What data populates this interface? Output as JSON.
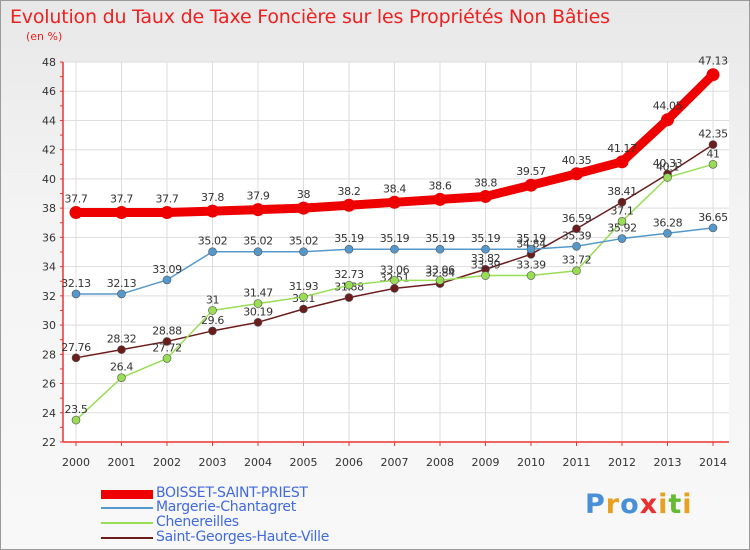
{
  "chart_data": {
    "type": "line",
    "title": "Evolution du Taux de Taxe Foncière sur les Propriétés Non Bâties",
    "ylabel": "(en %)",
    "xlabel": "",
    "ylim": [
      22,
      48
    ],
    "yticks": [
      22,
      24,
      26,
      28,
      30,
      32,
      34,
      36,
      38,
      40,
      42,
      44,
      46,
      48
    ],
    "categories": [
      "2000",
      "2001",
      "2002",
      "2003",
      "2004",
      "2005",
      "2006",
      "2007",
      "2008",
      "2009",
      "2010",
      "2011",
      "2012",
      "2013",
      "2014"
    ],
    "series": [
      {
        "name": "Saint-Georges-Haute-Ville",
        "color": "#6b1c1c",
        "values": [
          27.76,
          28.32,
          28.88,
          29.6,
          30.19,
          31.1,
          31.88,
          32.51,
          32.84,
          33.82,
          34.84,
          36.59,
          38.41,
          40.33,
          42.35
        ],
        "labels": [
          "27.76",
          "28.32",
          "28.88",
          "29.6",
          "30.19",
          "31.1",
          "31.88",
          "32.51",
          "32.84",
          "33.82",
          "34.84",
          "36.59",
          "38.41",
          "40.33",
          "42.35"
        ]
      },
      {
        "name": "Chenereilles",
        "color": "#99dd55",
        "values": [
          23.5,
          26.4,
          27.72,
          31,
          31.47,
          31.93,
          32.73,
          33.06,
          33.06,
          33.39,
          33.39,
          33.72,
          37.1,
          40.1,
          41
        ],
        "labels": [
          "23.5",
          "26.4",
          "27.72",
          "31",
          "31.47",
          "31.93",
          "32.73",
          "33.06",
          "33.06",
          "33.39",
          "33.39",
          "33.72",
          "37.1",
          "40.1",
          "41"
        ]
      },
      {
        "name": "Margerie-Chantagret",
        "color": "#5599cc",
        "values": [
          32.13,
          32.13,
          33.09,
          35.02,
          35.02,
          35.02,
          35.19,
          35.19,
          35.19,
          35.19,
          35.19,
          35.39,
          35.92,
          36.28,
          36.65
        ],
        "labels": [
          "32.13",
          "32.13",
          "33.09",
          "35.02",
          "35.02",
          "35.02",
          "35.19",
          "35.19",
          "35.19",
          "35.19",
          "35.19",
          "35.39",
          "35.92",
          "36.28",
          "36.65"
        ]
      },
      {
        "name": "BOISSET-SAINT-PRIEST",
        "color": "#ee0000",
        "values": [
          37.7,
          37.7,
          37.7,
          37.8,
          37.9,
          38,
          38.2,
          38.4,
          38.6,
          38.8,
          39.57,
          40.35,
          41.17,
          44.05,
          47.13
        ],
        "labels": [
          "37.7",
          "37.7",
          "37.7",
          "37.8",
          "37.9",
          "38",
          "38.2",
          "38.4",
          "38.6",
          "38.8",
          "39.57",
          "40.35",
          "41.17",
          "44.05",
          "47.13"
        ]
      }
    ],
    "legend": [
      {
        "name": "BOISSET-SAINT-PRIEST",
        "color": "#ee0000"
      },
      {
        "name": "Margerie-Chantagret",
        "color": "#5599cc"
      },
      {
        "name": "Chenereilles",
        "color": "#99dd55"
      },
      {
        "name": "Saint-Georges-Haute-Ville",
        "color": "#6b1c1c"
      }
    ]
  },
  "brand": {
    "letters": [
      "P",
      "r",
      "o",
      "x",
      "i",
      "t",
      "i"
    ],
    "colors": [
      "#4a90d9",
      "#e8a020",
      "#4a90d9",
      "#e83030",
      "#e8a020",
      "#66bb33",
      "#e8a020"
    ]
  }
}
